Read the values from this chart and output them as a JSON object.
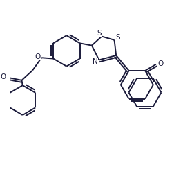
{
  "background_color": "#ffffff",
  "line_color": "#1a1a3a",
  "line_width": 1.4,
  "figsize": [
    2.78,
    2.67
  ],
  "dpi": 100,
  "xlim": [
    0,
    10
  ],
  "ylim": [
    0,
    9.6
  ]
}
